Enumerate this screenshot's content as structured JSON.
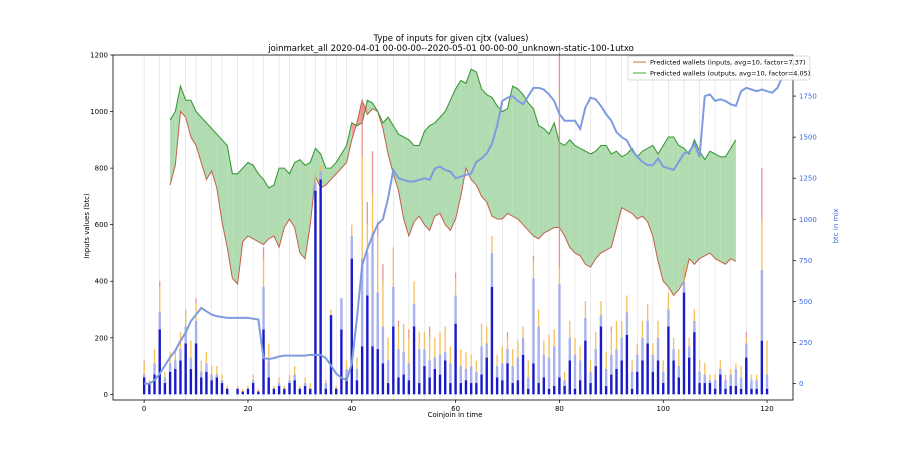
{
  "chart_data": {
    "type": "bar",
    "title": "Type of inputs for given cjtx (values)",
    "subtitle": "joinmarket_all 2020-04-01 00-00-00--2020-05-01 00-00-00_unknown-static-100-1utxo",
    "xlabel": "Coinjoin in time",
    "ylabel": "Inputs values (btc)",
    "y2label": "btc in mix",
    "xlim": [
      -6,
      125
    ],
    "ylim": [
      -20,
      1200
    ],
    "y2lim": [
      -100,
      2000
    ],
    "x_ticks": [
      0,
      20,
      40,
      60,
      80,
      100,
      120
    ],
    "y_ticks": [
      0,
      200,
      400,
      600,
      800,
      1000,
      1200
    ],
    "y2_ticks": [
      0,
      250,
      500,
      750,
      1000,
      1250,
      1500,
      1750
    ],
    "grid": "vertical lines at some coinjoins",
    "legend_position": "top-right",
    "legend": [
      {
        "label": "Predicted wallets (inputs, avg=10, factor=7.37)",
        "color": "#e8806a"
      },
      {
        "label": "Predicted wallets (outputs, avg=10, factor=4.05)",
        "color": "#5cb85c"
      }
    ],
    "colors": {
      "bar_dark": "#1a1ac8",
      "bar_light": "#a0a8ec",
      "bar_orange": "#f5b94a",
      "bar_red": "#e87a7a",
      "band_green": "#a8d8a8",
      "band_red": "#f08080",
      "line_inputs": "#c0604a",
      "line_outputs": "#3a9a3a",
      "line_mix": "#7f9be0"
    },
    "vlines": [
      0,
      3,
      5,
      8,
      10,
      13,
      15,
      18,
      21,
      23,
      26,
      28,
      31,
      33,
      35,
      37,
      39,
      42,
      45,
      48,
      51,
      54,
      57,
      60,
      63,
      66,
      69,
      72,
      75,
      78,
      80,
      83,
      86,
      89,
      92,
      95,
      98,
      101,
      104,
      107,
      110,
      113,
      116,
      119
    ],
    "band_x": [
      5,
      6,
      7,
      8,
      9,
      10,
      11,
      12,
      13,
      14,
      15,
      16,
      17,
      18,
      19,
      20,
      21,
      22,
      23,
      24,
      25,
      26,
      27,
      28,
      29,
      30,
      31,
      32,
      33,
      34,
      35,
      36,
      37,
      38,
      39,
      40,
      41,
      42,
      43,
      44,
      45,
      46,
      47,
      48,
      49,
      50,
      51,
      52,
      53,
      54,
      55,
      56,
      57,
      58,
      59,
      60,
      61,
      62,
      63,
      64,
      65,
      66,
      67,
      68,
      69,
      70,
      71,
      72,
      73,
      74,
      75,
      76,
      77,
      78,
      79,
      80,
      81,
      82,
      83,
      84,
      85,
      86,
      87,
      88,
      89,
      90,
      91,
      92,
      93,
      94,
      95,
      96,
      97,
      98,
      99,
      100,
      101,
      102,
      103,
      104,
      105,
      106,
      107,
      108,
      109,
      110,
      111,
      112,
      113,
      114
    ],
    "inputs_wallets": [
      740,
      810,
      1000,
      980,
      910,
      880,
      820,
      760,
      790,
      730,
      610,
      520,
      410,
      390,
      540,
      560,
      550,
      540,
      530,
      550,
      560,
      520,
      590,
      620,
      590,
      500,
      480,
      600,
      770,
      730,
      740,
      760,
      780,
      800,
      820,
      900,
      960,
      1040,
      990,
      1010,
      1000,
      940,
      850,
      780,
      720,
      620,
      560,
      610,
      630,
      600,
      580,
      630,
      640,
      600,
      580,
      620,
      700,
      800,
      760,
      740,
      700,
      680,
      630,
      620,
      620,
      640,
      630,
      620,
      600,
      580,
      560,
      550,
      570,
      580,
      590,
      590,
      560,
      520,
      500,
      490,
      460,
      450,
      480,
      500,
      510,
      520,
      590,
      660,
      650,
      640,
      620,
      630,
      610,
      560,
      470,
      400,
      380,
      350,
      370,
      400,
      480,
      460,
      480,
      490,
      500,
      480,
      470,
      460,
      480,
      470
    ],
    "outputs_wallets": [
      970,
      1000,
      1090,
      1040,
      1040,
      1000,
      980,
      960,
      940,
      920,
      900,
      880,
      780,
      780,
      800,
      820,
      810,
      780,
      760,
      730,
      740,
      800,
      800,
      780,
      820,
      830,
      810,
      820,
      870,
      850,
      800,
      800,
      820,
      850,
      880,
      960,
      950,
      960,
      1040,
      1030,
      1000,
      960,
      980,
      950,
      920,
      910,
      900,
      880,
      880,
      930,
      950,
      960,
      980,
      1000,
      1040,
      1080,
      1110,
      1100,
      1150,
      1140,
      1080,
      1060,
      1050,
      1020,
      1000,
      1010,
      1090,
      1080,
      1060,
      1030,
      1010,
      950,
      940,
      920,
      960,
      890,
      880,
      900,
      880,
      870,
      860,
      850,
      860,
      880,
      880,
      850,
      860,
      840,
      850,
      870,
      840,
      860,
      870,
      880,
      850,
      880,
      910,
      910,
      880,
      870,
      850,
      900,
      860,
      830,
      860,
      850,
      840,
      840,
      870,
      900
    ],
    "mix_x": [
      0,
      1,
      2,
      3,
      4,
      5,
      6,
      7,
      8,
      9,
      10,
      11,
      12,
      13,
      14,
      15,
      16,
      17,
      18,
      19,
      20,
      21,
      22,
      23,
      24,
      25,
      26,
      27,
      28,
      29,
      30,
      31,
      32,
      33,
      34,
      35,
      36,
      37,
      38,
      39,
      40,
      41,
      42,
      43,
      44,
      45,
      46,
      47,
      48,
      49,
      50,
      51,
      52,
      53,
      54,
      55,
      56,
      57,
      58,
      59,
      60,
      61,
      62,
      63,
      64,
      65,
      66,
      67,
      68,
      69,
      70,
      71,
      72,
      73,
      74,
      75,
      76,
      77,
      78,
      79,
      80,
      81,
      82,
      83,
      84,
      85,
      86,
      87,
      88,
      89,
      90,
      91,
      92,
      93,
      94,
      95,
      96,
      97,
      98,
      99,
      100,
      101,
      102,
      103,
      104,
      105,
      106,
      107,
      108,
      109,
      110,
      111,
      112,
      113,
      114,
      115,
      116,
      117,
      118,
      119,
      120,
      121,
      122,
      123
    ],
    "mix_btc": [
      0,
      0,
      20,
      60,
      110,
      160,
      200,
      260,
      310,
      380,
      420,
      460,
      440,
      420,
      410,
      405,
      400,
      400,
      400,
      400,
      400,
      395,
      390,
      155,
      150,
      155,
      165,
      170,
      170,
      170,
      170,
      170,
      175,
      175,
      175,
      155,
      110,
      60,
      35,
      20,
      120,
      400,
      720,
      820,
      900,
      970,
      1000,
      1130,
      1300,
      1250,
      1240,
      1230,
      1230,
      1240,
      1250,
      1240,
      1310,
      1320,
      1300,
      1290,
      1250,
      1260,
      1270,
      1280,
      1350,
      1370,
      1400,
      1460,
      1570,
      1720,
      1740,
      1750,
      1720,
      1700,
      1750,
      1800,
      1800,
      1790,
      1760,
      1720,
      1640,
      1600,
      1600,
      1600,
      1550,
      1680,
      1740,
      1730,
      1690,
      1640,
      1600,
      1530,
      1500,
      1480,
      1420,
      1380,
      1350,
      1330,
      1330,
      1370,
      1320,
      1310,
      1300,
      1350,
      1400,
      1410,
      1460,
      1380,
      1750,
      1760,
      1720,
      1730,
      1720,
      1700,
      1690,
      1780,
      1800,
      1790,
      1780,
      1790,
      1780,
      1770,
      1800,
      1870
    ],
    "bars": [
      [
        0,
        60,
        10,
        40,
        10
      ],
      [
        1,
        40,
        0,
        10,
        0
      ],
      [
        2,
        70,
        40,
        50,
        0
      ],
      [
        3,
        230,
        60,
        90,
        20
      ],
      [
        4,
        40,
        20,
        20,
        0
      ],
      [
        5,
        80,
        30,
        40,
        0
      ],
      [
        6,
        90,
        30,
        40,
        0
      ],
      [
        7,
        120,
        40,
        60,
        0
      ],
      [
        8,
        180,
        60,
        60,
        0
      ],
      [
        9,
        90,
        40,
        60,
        0
      ],
      [
        10,
        180,
        80,
        60,
        20
      ],
      [
        11,
        60,
        20,
        40,
        0
      ],
      [
        12,
        80,
        30,
        40,
        0
      ],
      [
        13,
        50,
        20,
        30,
        0
      ],
      [
        14,
        60,
        10,
        30,
        0
      ],
      [
        15,
        40,
        10,
        20,
        0
      ],
      [
        16,
        20,
        0,
        10,
        0
      ],
      [
        18,
        20,
        0,
        10,
        0
      ],
      [
        19,
        10,
        0,
        10,
        0
      ],
      [
        20,
        20,
        0,
        10,
        0
      ],
      [
        21,
        40,
        10,
        20,
        0
      ],
      [
        22,
        10,
        0,
        10,
        0
      ],
      [
        23,
        230,
        150,
        100,
        40
      ],
      [
        24,
        60,
        60,
        60,
        0
      ],
      [
        25,
        20,
        0,
        10,
        0
      ],
      [
        26,
        30,
        10,
        20,
        0
      ],
      [
        27,
        20,
        0,
        10,
        0
      ],
      [
        28,
        40,
        10,
        20,
        0
      ],
      [
        29,
        50,
        20,
        30,
        0
      ],
      [
        30,
        20,
        0,
        10,
        0
      ],
      [
        31,
        30,
        10,
        20,
        0
      ],
      [
        32,
        20,
        0,
        20,
        0
      ],
      [
        33,
        720,
        30,
        40,
        0
      ],
      [
        34,
        760,
        30,
        20,
        0
      ],
      [
        35,
        20,
        20,
        10,
        0
      ],
      [
        36,
        280,
        0,
        20,
        0
      ],
      [
        37,
        20,
        0,
        10,
        0
      ],
      [
        38,
        230,
        110,
        0,
        0
      ],
      [
        39,
        60,
        30,
        30,
        0
      ],
      [
        40,
        480,
        80,
        40,
        0
      ],
      [
        41,
        50,
        40,
        40,
        0
      ],
      [
        42,
        170,
        310,
        360,
        200
      ],
      [
        43,
        350,
        150,
        100,
        80
      ],
      [
        44,
        170,
        400,
        140,
        150
      ],
      [
        45,
        160,
        200,
        200,
        50
      ],
      [
        46,
        110,
        130,
        160,
        60
      ],
      [
        47,
        40,
        80,
        80,
        0
      ],
      [
        48,
        240,
        140,
        140,
        0
      ],
      [
        49,
        60,
        100,
        80,
        20
      ],
      [
        50,
        70,
        80,
        100,
        0
      ],
      [
        51,
        50,
        60,
        90,
        30
      ],
      [
        52,
        240,
        80,
        80,
        0
      ],
      [
        53,
        40,
        120,
        60,
        0
      ],
      [
        54,
        100,
        60,
        60,
        0
      ],
      [
        55,
        60,
        60,
        80,
        40
      ],
      [
        56,
        90,
        40,
        70,
        0
      ],
      [
        57,
        70,
        70,
        80,
        0
      ],
      [
        58,
        120,
        30,
        90,
        0
      ],
      [
        59,
        40,
        70,
        60,
        0
      ],
      [
        60,
        250,
        100,
        60,
        20
      ],
      [
        61,
        40,
        60,
        60,
        0
      ],
      [
        62,
        50,
        40,
        60,
        0
      ],
      [
        63,
        40,
        60,
        40,
        0
      ],
      [
        64,
        40,
        40,
        40,
        0
      ],
      [
        65,
        70,
        100,
        80,
        0
      ],
      [
        66,
        130,
        50,
        60,
        0
      ],
      [
        67,
        380,
        120,
        60,
        0
      ],
      [
        68,
        60,
        40,
        40,
        0
      ],
      [
        69,
        50,
        60,
        60,
        0
      ],
      [
        70,
        110,
        50,
        40,
        20
      ],
      [
        71,
        40,
        60,
        60,
        0
      ],
      [
        72,
        50,
        80,
        60,
        0
      ],
      [
        73,
        140,
        60,
        40,
        0
      ],
      [
        74,
        20,
        40,
        60,
        0
      ],
      [
        75,
        110,
        300,
        60,
        20
      ],
      [
        76,
        40,
        200,
        60,
        0
      ],
      [
        77,
        60,
        80,
        50,
        0
      ],
      [
        78,
        20,
        110,
        80,
        0
      ],
      [
        79,
        30,
        140,
        60,
        0
      ],
      [
        80,
        60,
        330,
        60,
        760
      ],
      [
        81,
        30,
        20,
        30,
        0
      ],
      [
        82,
        120,
        80,
        60,
        0
      ],
      [
        83,
        20,
        120,
        60,
        0
      ],
      [
        84,
        50,
        70,
        50,
        0
      ],
      [
        85,
        190,
        80,
        60,
        0
      ],
      [
        86,
        40,
        40,
        40,
        0
      ],
      [
        87,
        100,
        60,
        60,
        0
      ],
      [
        88,
        240,
        40,
        50,
        0
      ],
      [
        89,
        30,
        60,
        60,
        0
      ],
      [
        90,
        70,
        70,
        80,
        20
      ],
      [
        91,
        90,
        70,
        100,
        0
      ],
      [
        92,
        120,
        80,
        60,
        0
      ],
      [
        93,
        210,
        80,
        60,
        0
      ],
      [
        94,
        20,
        60,
        40,
        0
      ],
      [
        95,
        80,
        60,
        40,
        0
      ],
      [
        96,
        120,
        80,
        60,
        0
      ],
      [
        97,
        180,
        80,
        60,
        0
      ],
      [
        98,
        80,
        60,
        40,
        0
      ],
      [
        99,
        120,
        80,
        60,
        0
      ],
      [
        100,
        40,
        40,
        40,
        0
      ],
      [
        101,
        240,
        60,
        60,
        0
      ],
      [
        102,
        120,
        40,
        40,
        0
      ],
      [
        103,
        60,
        40,
        60,
        0
      ],
      [
        104,
        360,
        40,
        60,
        0
      ],
      [
        105,
        130,
        40,
        30,
        0
      ],
      [
        106,
        220,
        40,
        40,
        0
      ],
      [
        107,
        40,
        40,
        40,
        0
      ],
      [
        108,
        40,
        30,
        40,
        0
      ],
      [
        109,
        40,
        10,
        20,
        0
      ],
      [
        110,
        20,
        30,
        20,
        0
      ],
      [
        111,
        70,
        20,
        30,
        0
      ],
      [
        112,
        20,
        30,
        20,
        0
      ],
      [
        113,
        30,
        40,
        20,
        0
      ],
      [
        114,
        30,
        60,
        20,
        0
      ],
      [
        115,
        20,
        40,
        40,
        0
      ],
      [
        116,
        130,
        50,
        20,
        20
      ],
      [
        117,
        20,
        30,
        20,
        0
      ],
      [
        118,
        20,
        30,
        20,
        0
      ],
      [
        119,
        190,
        250,
        180,
        180
      ],
      [
        120,
        20,
        50,
        120,
        0
      ]
    ]
  }
}
